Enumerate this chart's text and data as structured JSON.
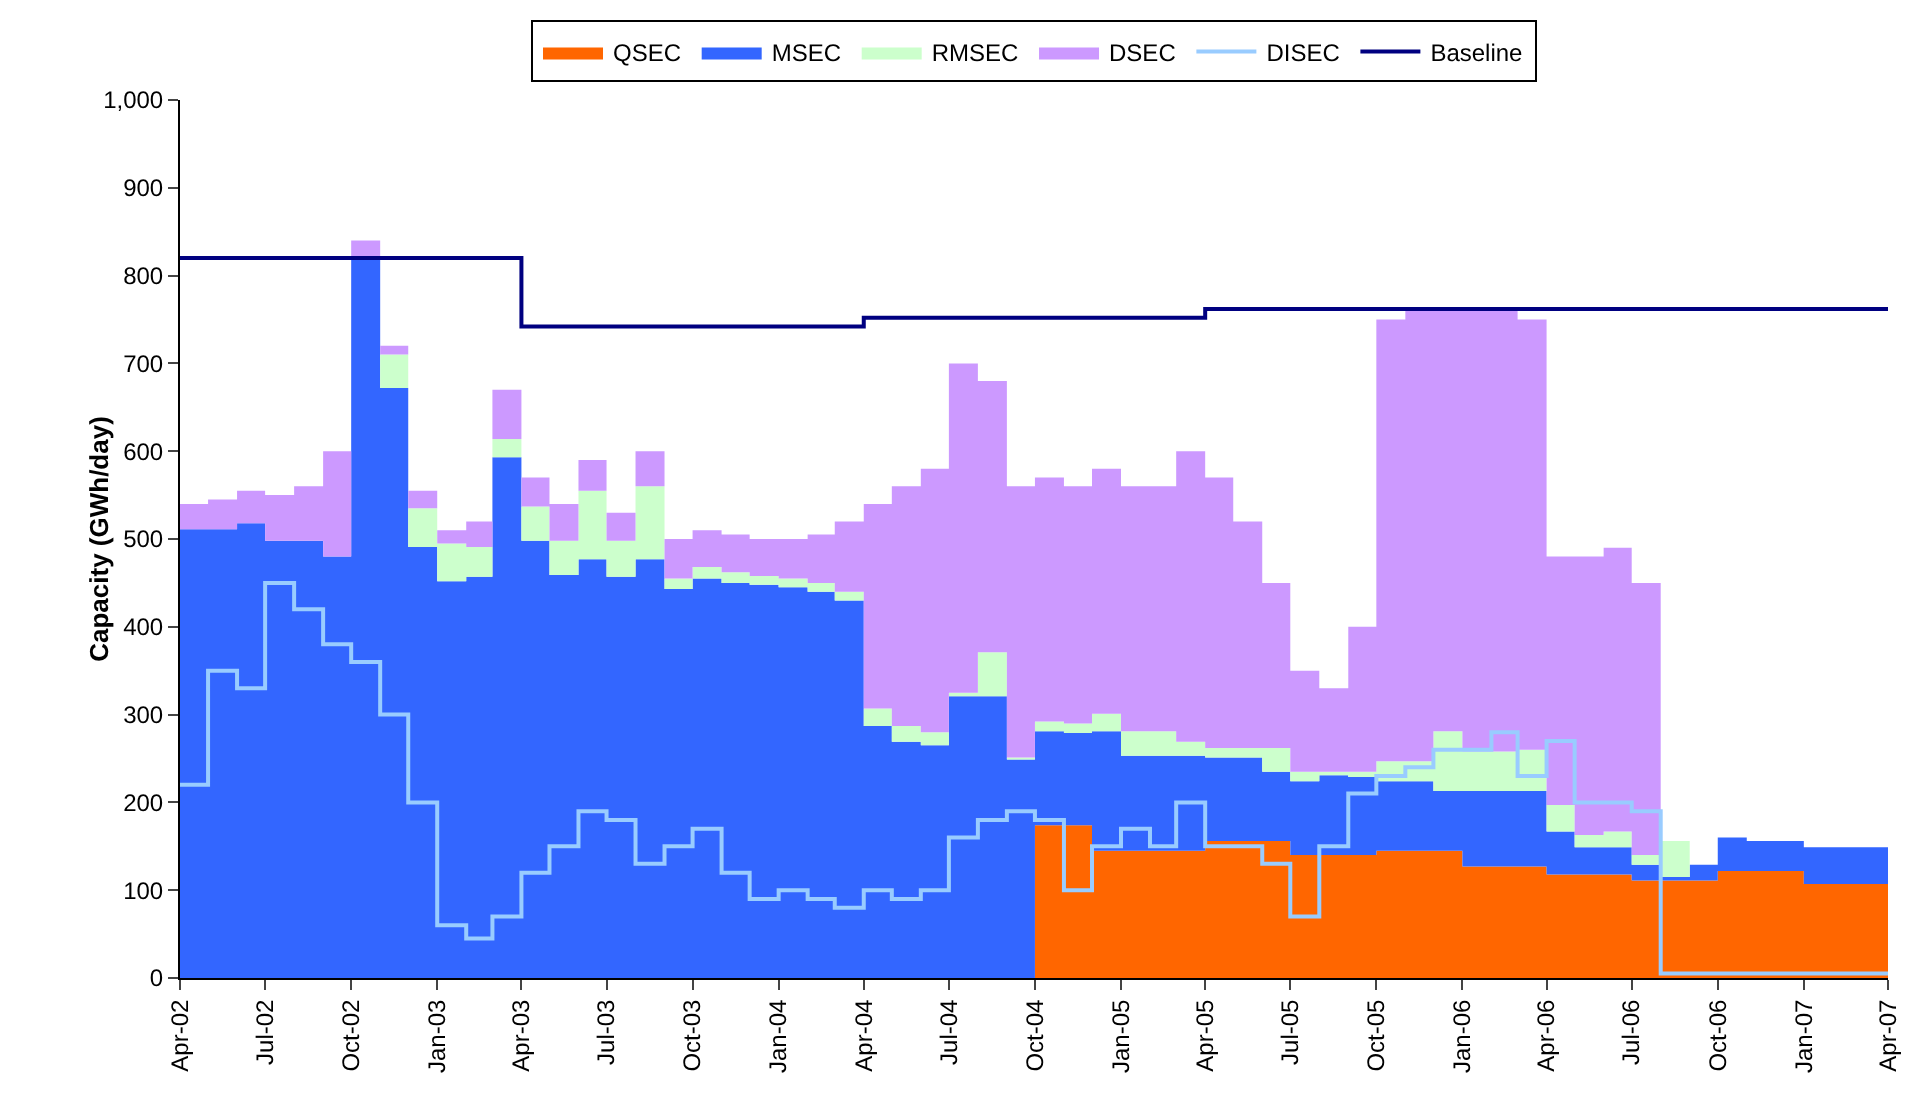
{
  "chart_data": {
    "type": "step",
    "stacked": true,
    "ylabel": "Capacity (GWh/day)",
    "legend": "top",
    "grid": false,
    "marker": "none",
    "x": [
      "2002-04",
      "2002-05",
      "2002-06",
      "2002-07",
      "2002-08",
      "2002-09",
      "2002-10",
      "2002-11",
      "2002-12",
      "2003-01",
      "2003-02",
      "2003-03",
      "2003-04",
      "2003-05",
      "2003-06",
      "2003-07",
      "2003-08",
      "2003-09",
      "2003-10",
      "2003-11",
      "2003-12",
      "2004-01",
      "2004-02",
      "2004-03",
      "2004-04",
      "2004-05",
      "2004-06",
      "2004-07",
      "2004-08",
      "2004-09",
      "2004-10",
      "2004-11",
      "2004-12",
      "2005-01",
      "2005-02",
      "2005-03",
      "2005-04",
      "2005-05",
      "2005-06",
      "2005-07",
      "2005-08",
      "2005-09",
      "2005-10",
      "2005-11",
      "2005-12",
      "2006-01",
      "2006-02",
      "2006-03",
      "2006-04",
      "2006-05",
      "2006-06",
      "2006-07",
      "2006-08",
      "2006-09",
      "2006-10",
      "2006-11",
      "2006-12",
      "2007-01",
      "2007-02",
      "2007-03",
      "2007-04"
    ],
    "xlim": [
      "2002-04",
      "2007-04"
    ],
    "xticks": [
      {
        "value": "2002-04",
        "label": "Apr-02"
      },
      {
        "value": "2002-07",
        "label": "Jul-02"
      },
      {
        "value": "2002-10",
        "label": "Oct-02"
      },
      {
        "value": "2003-01",
        "label": "Jan-03"
      },
      {
        "value": "2003-04",
        "label": "Apr-03"
      },
      {
        "value": "2003-07",
        "label": "Jul-03"
      },
      {
        "value": "2003-10",
        "label": "Oct-03"
      },
      {
        "value": "2004-01",
        "label": "Jan-04"
      },
      {
        "value": "2004-04",
        "label": "Apr-04"
      },
      {
        "value": "2004-07",
        "label": "Jul-04"
      },
      {
        "value": "2004-10",
        "label": "Oct-04"
      },
      {
        "value": "2005-01",
        "label": "Jan-05"
      },
      {
        "value": "2005-04",
        "label": "Apr-05"
      },
      {
        "value": "2005-07",
        "label": "Jul-05"
      },
      {
        "value": "2005-10",
        "label": "Oct-05"
      },
      {
        "value": "2006-01",
        "label": "Jan-06"
      },
      {
        "value": "2006-04",
        "label": "Apr-06"
      },
      {
        "value": "2006-07",
        "label": "Jul-06"
      },
      {
        "value": "2006-10",
        "label": "Oct-06"
      },
      {
        "value": "2007-01",
        "label": "Jan-07"
      },
      {
        "value": "2007-04",
        "label": "Apr-07"
      }
    ],
    "ylim": [
      0,
      1000
    ],
    "yticks": [
      0,
      100,
      200,
      300,
      400,
      500,
      600,
      700,
      800,
      900,
      {
        "value": 1000,
        "label": "1,000"
      }
    ],
    "series": [
      {
        "name": "QSEC",
        "type": "area",
        "color": "#ff6600",
        "values": [
          0,
          0,
          0,
          0,
          0,
          0,
          0,
          0,
          0,
          0,
          0,
          0,
          0,
          0,
          0,
          0,
          0,
          0,
          0,
          0,
          0,
          0,
          0,
          0,
          0,
          0,
          0,
          0,
          0,
          0,
          174,
          174,
          145,
          145,
          145,
          145,
          156,
          156,
          156,
          140,
          140,
          140,
          145,
          145,
          145,
          127,
          127,
          127,
          118,
          118,
          118,
          111,
          111,
          111,
          122,
          122,
          122,
          107,
          107,
          107,
          107
        ]
      },
      {
        "name": "MSEC",
        "type": "area",
        "color": "#3366ff",
        "values": [
          511,
          511,
          518,
          498,
          498,
          480,
          819,
          672,
          491,
          452,
          457,
          593,
          498,
          459,
          477,
          457,
          477,
          443,
          455,
          450,
          448,
          445,
          440,
          430,
          287,
          269,
          265,
          321,
          321,
          249,
          107,
          105,
          136,
          108,
          108,
          108,
          95,
          95,
          79,
          84,
          91,
          89,
          79,
          79,
          68,
          86,
          86,
          86,
          49,
          31,
          31,
          18,
          4,
          18,
          38,
          34,
          34,
          42,
          42,
          42,
          42
        ]
      },
      {
        "name": "RMSEC",
        "type": "area",
        "color": "#ccffcc",
        "values": [
          0,
          0,
          0,
          0,
          0,
          0,
          0,
          38,
          44,
          43,
          34,
          21,
          39,
          39,
          78,
          41,
          83,
          12,
          13,
          12,
          10,
          10,
          10,
          10,
          20,
          18,
          15,
          4,
          50,
          2,
          11,
          11,
          20,
          28,
          28,
          16,
          11,
          11,
          27,
          11,
          4,
          6,
          23,
          23,
          68,
          45,
          45,
          47,
          30,
          14,
          18,
          11,
          41,
          0,
          0,
          0,
          0,
          0,
          0,
          0,
          0
        ]
      },
      {
        "name": "DSEC",
        "type": "area",
        "color": "#cc99ff",
        "values": [
          29,
          34,
          37,
          52,
          62,
          120,
          21,
          10,
          20,
          15,
          29,
          56,
          33,
          42,
          35,
          32,
          40,
          45,
          42,
          43,
          42,
          45,
          55,
          80,
          233,
          273,
          300,
          375,
          309,
          309,
          278,
          270,
          279,
          279,
          279,
          331,
          308,
          258,
          188,
          115,
          95,
          165,
          503,
          513,
          479,
          502,
          502,
          490,
          283,
          317,
          323,
          310,
          0,
          0,
          0,
          0,
          0,
          0,
          0,
          0,
          0
        ]
      },
      {
        "name": "DISEC",
        "type": "step",
        "color": "#99ccff",
        "values": [
          220,
          350,
          330,
          450,
          420,
          380,
          360,
          300,
          200,
          60,
          45,
          70,
          120,
          150,
          190,
          180,
          130,
          150,
          170,
          120,
          90,
          100,
          90,
          80,
          100,
          90,
          100,
          160,
          180,
          190,
          180,
          100,
          150,
          170,
          150,
          200,
          150,
          150,
          130,
          70,
          150,
          210,
          230,
          240,
          260,
          260,
          280,
          230,
          270,
          200,
          200,
          190,
          5,
          5,
          5,
          5,
          5,
          5,
          5,
          5,
          5
        ]
      },
      {
        "name": "Baseline",
        "type": "step",
        "color": "#000080",
        "values": [
          820,
          820,
          820,
          820,
          820,
          820,
          820,
          820,
          820,
          820,
          820,
          820,
          742,
          742,
          742,
          742,
          742,
          742,
          742,
          742,
          742,
          742,
          742,
          742,
          752,
          752,
          752,
          752,
          752,
          752,
          752,
          752,
          752,
          752,
          752,
          752,
          762,
          762,
          762,
          762,
          762,
          762,
          762,
          762,
          762,
          762,
          762,
          762,
          762,
          762,
          762,
          762,
          762,
          762,
          762,
          762,
          762,
          762,
          762,
          762,
          762
        ]
      }
    ]
  }
}
